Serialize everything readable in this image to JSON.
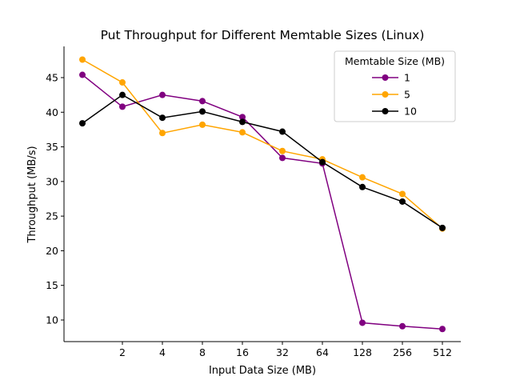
{
  "chart_data": {
    "type": "line",
    "title": "Put Throughput for Different Memtable Sizes (Linux)",
    "xlabel": "Input Data Size (MB)",
    "ylabel": "Throughput (MB/s)",
    "x": [
      1,
      2,
      4,
      8,
      16,
      32,
      64,
      128,
      256,
      512
    ],
    "x_scale": "log2",
    "x_tick_labels": [
      "2",
      "4",
      "8",
      "16",
      "32",
      "64",
      "128",
      "256",
      "512"
    ],
    "x_tick_values": [
      2,
      4,
      8,
      16,
      32,
      64,
      128,
      256,
      512
    ],
    "y_ticks": [
      10,
      15,
      20,
      25,
      30,
      35,
      40,
      45
    ],
    "ylim": [
      6.9,
      49.3
    ],
    "grid": false,
    "legend": {
      "title": "Memtable Size (MB)",
      "placement": "top-right"
    },
    "series": [
      {
        "name": "1",
        "color": "#800080",
        "values": [
          45.4,
          40.8,
          42.5,
          41.6,
          39.3,
          33.4,
          32.6,
          9.6,
          9.1,
          8.7
        ]
      },
      {
        "name": "5",
        "color": "#FFA500",
        "values": [
          47.6,
          44.3,
          37.0,
          38.2,
          37.1,
          34.4,
          33.2,
          30.6,
          28.2,
          23.2
        ]
      },
      {
        "name": "10",
        "color": "#000000",
        "values": [
          38.4,
          42.5,
          39.2,
          40.1,
          38.6,
          37.2,
          32.8,
          29.2,
          27.1,
          23.3
        ]
      }
    ]
  }
}
